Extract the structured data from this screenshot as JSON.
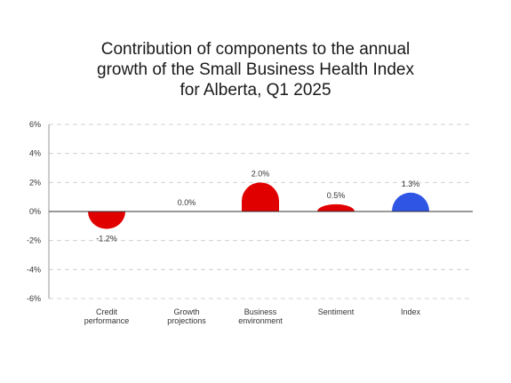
{
  "chart_data": {
    "type": "bar",
    "title_lines": [
      "Contribution of components to the annual",
      "growth of the Small Business Health Index",
      "for Alberta, Q1 2025"
    ],
    "categories": [
      [
        "Credit",
        "performance"
      ],
      [
        "Growth",
        "projections"
      ],
      [
        "Business",
        "environment"
      ],
      [
        "Sentiment"
      ],
      [
        "Index"
      ]
    ],
    "values": [
      -1.2,
      0.0,
      2.0,
      0.5,
      1.3
    ],
    "value_labels": [
      "-1.2%",
      "0.0%",
      "2.0%",
      "0.5%",
      "1.3%"
    ],
    "ylim": [
      -6,
      6
    ],
    "yticks": [
      6,
      4,
      2,
      0,
      -2,
      -4,
      -6
    ],
    "ytick_labels": [
      "6%",
      "4%",
      "2%",
      "0%",
      "-2%",
      "-4%",
      "-6%"
    ],
    "grid": true,
    "bar_shape": "rounded",
    "colors": [
      "#e00000",
      "#e00000",
      "#e00000",
      "#e00000",
      "#2f55e4"
    ]
  }
}
